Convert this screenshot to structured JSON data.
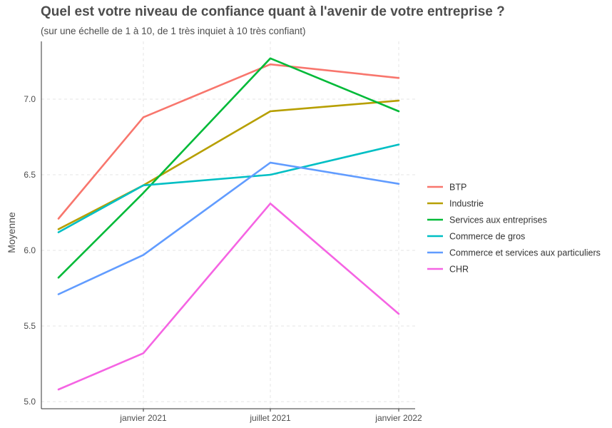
{
  "title": "Quel est votre niveau de confiance quant à l'avenir de votre entreprise ?",
  "subtitle": "(sur une échelle de 1 à 10, de 1 très inquiet à 10 très confiant)",
  "chart_data": {
    "type": "line",
    "ylabel": "Moyenne",
    "xlabel": "",
    "x_labels": [
      "janvier 2021",
      "juillet 2021",
      "janvier 2022"
    ],
    "x_points": [
      "2020-09",
      "2021-01",
      "2021-07",
      "2022-01"
    ],
    "ylim": [
      5.0,
      7.3
    ],
    "yticks": [
      "5.0",
      "5.5",
      "6.0",
      "6.5",
      "7.0"
    ],
    "grid": true,
    "legend_position": "right",
    "series": [
      {
        "name": "BTP",
        "color": "#F8766D",
        "values": [
          6.21,
          6.88,
          7.23,
          7.14
        ]
      },
      {
        "name": "Industrie",
        "color": "#B79F00",
        "values": [
          6.14,
          6.43,
          6.92,
          6.99
        ]
      },
      {
        "name": "Services aux entreprises",
        "color": "#00BA38",
        "values": [
          5.82,
          6.38,
          7.27,
          6.92
        ]
      },
      {
        "name": "Commerce de gros",
        "color": "#00BFC4",
        "values": [
          6.12,
          6.43,
          6.5,
          6.7
        ]
      },
      {
        "name": "Commerce et services aux particuliers",
        "color": "#619CFF",
        "values": [
          5.71,
          5.97,
          6.58,
          6.44
        ]
      },
      {
        "name": "CHR",
        "color": "#F564E3",
        "values": [
          5.08,
          5.32,
          6.31,
          5.58
        ]
      }
    ]
  }
}
